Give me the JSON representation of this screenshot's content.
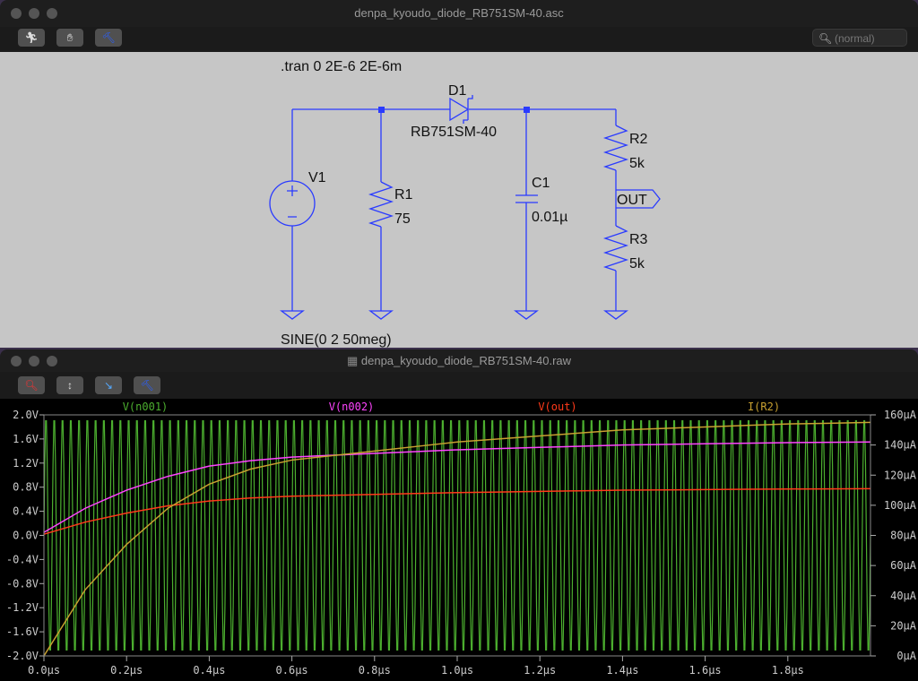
{
  "schematic_window": {
    "title": "denpa_kyoudo_diode_RB751SM-40.asc",
    "toolbar": [
      {
        "icon": "run-icon"
      },
      {
        "icon": "hand-icon"
      },
      {
        "icon": "hammer-icon"
      }
    ],
    "search_placeholder": "(normal)",
    "directive": ".tran 0 2E-6 2E-6m",
    "components": {
      "V1": {
        "name": "V1",
        "value": "SINE(0 2 50meg)"
      },
      "R1": {
        "name": "R1",
        "value": "75"
      },
      "D1": {
        "name": "D1",
        "value": "RB751SM-40"
      },
      "C1": {
        "name": "C1",
        "value": "0.01µ"
      },
      "R2": {
        "name": "R2",
        "value": "5k"
      },
      "R3": {
        "name": "R3",
        "value": "5k"
      }
    },
    "net_label": "OUT",
    "wire_color": "#2a3bff"
  },
  "waveform_window": {
    "title": "denpa_kyoudo_diode_RB751SM-40.raw",
    "toolbar": [
      {
        "icon": "zoom-icon"
      },
      {
        "icon": "autorange-icon"
      },
      {
        "icon": "cursor-icon"
      },
      {
        "icon": "hammer-icon"
      }
    ]
  },
  "chart_data": {
    "type": "line",
    "background": "#000000",
    "x_unit": "µs",
    "xlim": [
      0,
      2.0
    ],
    "x_ticks": [
      "0.0µs",
      "0.2µs",
      "0.4µs",
      "0.6µs",
      "0.8µs",
      "1.0µs",
      "1.2µs",
      "1.4µs",
      "1.6µs",
      "1.8µs"
    ],
    "ylim_left": [
      -2.0,
      2.0
    ],
    "y_ticks_left": [
      "2.0V",
      "1.6V",
      "1.2V",
      "0.8V",
      "0.4V",
      "0.0V",
      "-0.4V",
      "-0.8V",
      "-1.2V",
      "-1.6V",
      "-2.0V"
    ],
    "ylim_right": [
      0,
      160
    ],
    "y_ticks_right": [
      "160µA",
      "140µA",
      "120µA",
      "100µA",
      "80µA",
      "60µA",
      "40µA",
      "20µA",
      "0µA"
    ],
    "x": [
      0,
      0.1,
      0.2,
      0.3,
      0.4,
      0.5,
      0.6,
      0.7,
      0.8,
      0.9,
      1.0,
      1.1,
      1.2,
      1.3,
      1.4,
      1.5,
      1.6,
      1.7,
      1.8,
      1.9,
      2.0
    ],
    "series": [
      {
        "name": "V(n001)",
        "color": "#4caf2f",
        "axis": "left",
        "sine": {
          "amplitude": 2,
          "frequency_hz": 50000000,
          "offset": 0
        }
      },
      {
        "name": "V(n002)",
        "color": "#ff44ff",
        "axis": "left",
        "values": [
          0.05,
          0.45,
          0.75,
          0.98,
          1.15,
          1.24,
          1.3,
          1.33,
          1.36,
          1.39,
          1.42,
          1.44,
          1.46,
          1.48,
          1.5,
          1.51,
          1.52,
          1.53,
          1.54,
          1.545,
          1.55
        ]
      },
      {
        "name": "V(out)",
        "color": "#ff3a1a",
        "axis": "left",
        "values": [
          0.02,
          0.22,
          0.37,
          0.49,
          0.57,
          0.62,
          0.65,
          0.665,
          0.68,
          0.695,
          0.71,
          0.72,
          0.73,
          0.74,
          0.75,
          0.755,
          0.76,
          0.765,
          0.77,
          0.772,
          0.775
        ]
      },
      {
        "name": "I(R2)",
        "color": "#c8a030",
        "axis": "right",
        "values": [
          0,
          44,
          74,
          98,
          114,
          124,
          130,
          133,
          136,
          139,
          142,
          144,
          146,
          148,
          150,
          151,
          152,
          153,
          154,
          154.4,
          155
        ]
      }
    ]
  }
}
